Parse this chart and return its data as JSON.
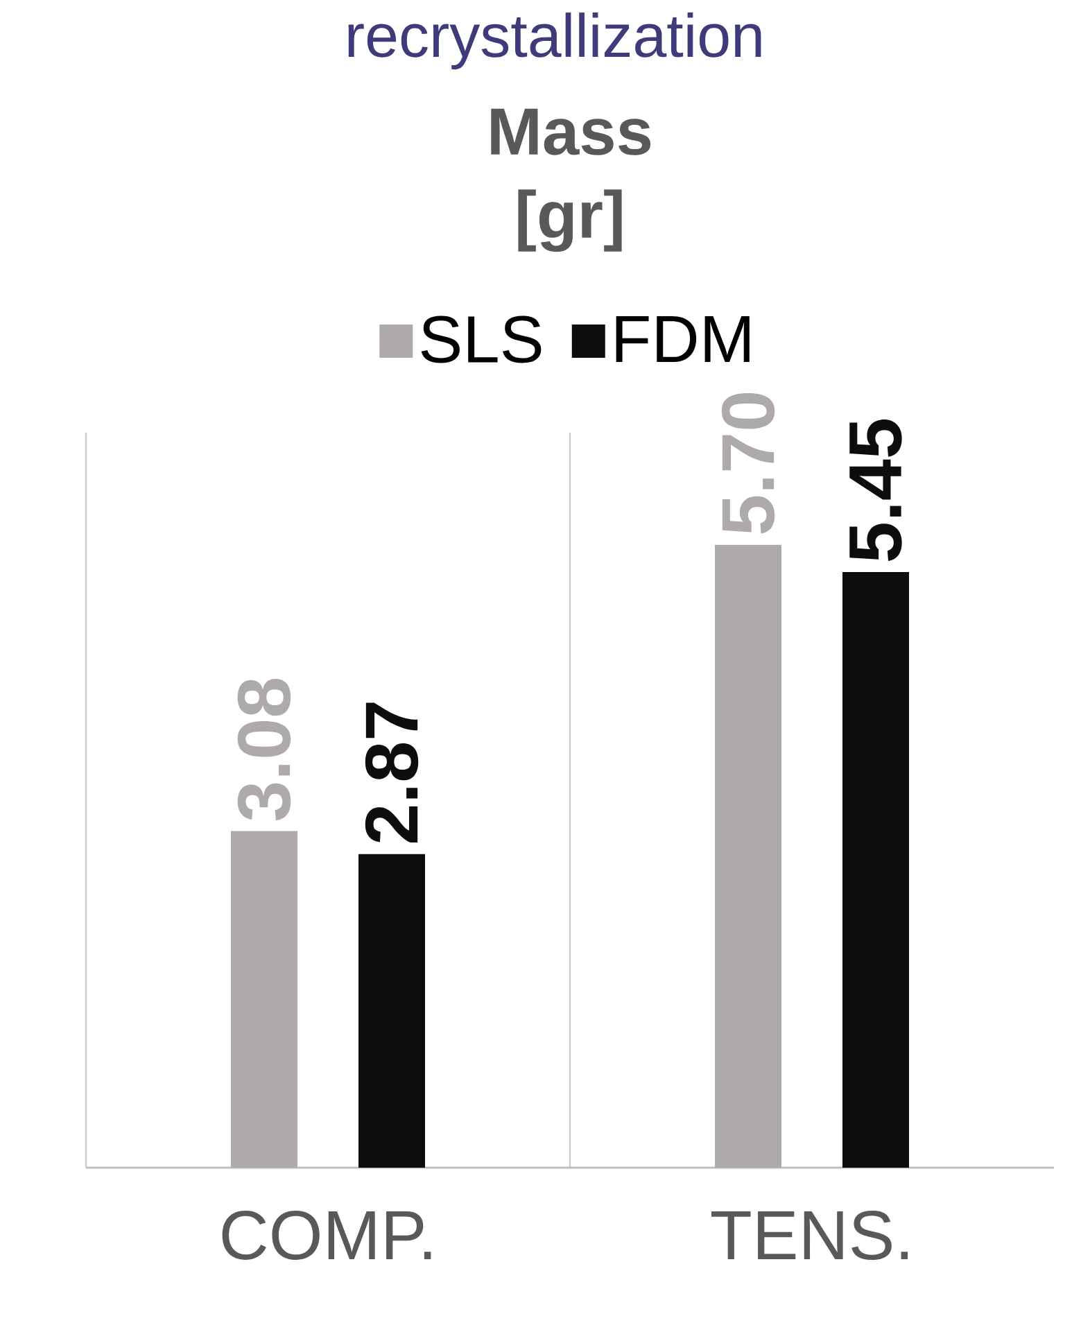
{
  "chart_data": {
    "type": "bar",
    "title": "Mass [gr]",
    "annotations": [
      "recrystallization"
    ],
    "categories": [
      "COMP.",
      "TENS."
    ],
    "series": [
      {
        "name": "SLS",
        "color": "#aeaaaa",
        "values": [
          3.08,
          5.7
        ],
        "value_labels": [
          "3.08",
          "5.70"
        ]
      },
      {
        "name": "FDM",
        "color": "#0d0d0d",
        "values": [
          2.87,
          5.45
        ],
        "value_labels": [
          "2.87",
          "5.45"
        ]
      }
    ],
    "grid": "x",
    "legend": "top"
  }
}
